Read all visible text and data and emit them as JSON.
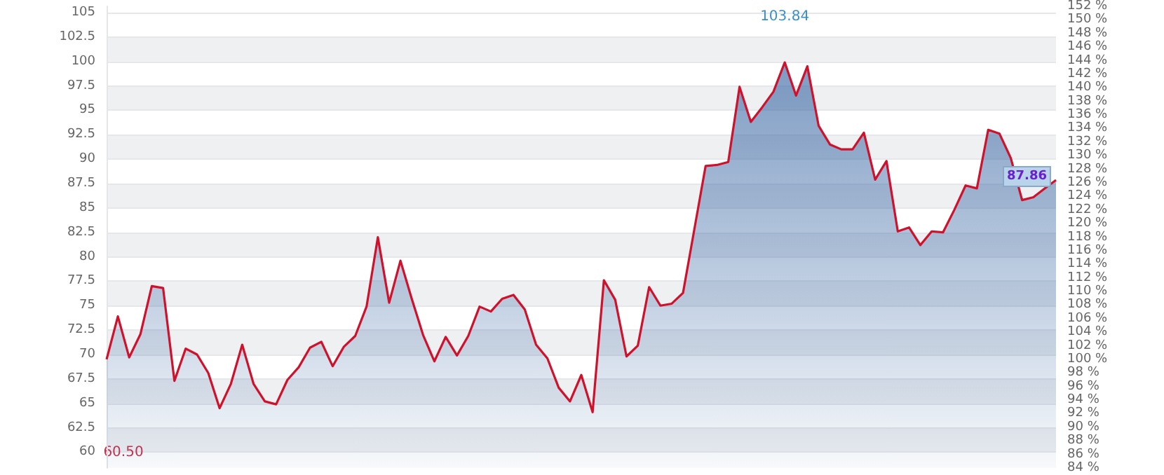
{
  "chart_data": {
    "type": "area",
    "categories": [
      null,
      null,
      null,
      null,
      null,
      null,
      null,
      null,
      null,
      null,
      null,
      null,
      null,
      null,
      null,
      null,
      null,
      null,
      null,
      null,
      null,
      null,
      null,
      null,
      null,
      null,
      null,
      null,
      null,
      null,
      null,
      null,
      null,
      null,
      null,
      null,
      null,
      null,
      null,
      null,
      null,
      null,
      null,
      null,
      null,
      null,
      null,
      null,
      null,
      null,
      null,
      null,
      null,
      null,
      null,
      null,
      null,
      null,
      null,
      null,
      null,
      null,
      null,
      null,
      null,
      null,
      null,
      null,
      null,
      null,
      null,
      null,
      null,
      null,
      null,
      null,
      null,
      null,
      null,
      null,
      null,
      null,
      null,
      null,
      null
    ],
    "series": [
      {
        "color": "#d0112b",
        "values": [
          69.5,
          73.9,
          69.7,
          72.1,
          77.0,
          76.8,
          67.3,
          70.6,
          70.0,
          68.1,
          64.5,
          67.0,
          71.0,
          67.0,
          65.2,
          64.9,
          67.4,
          68.7,
          70.7,
          71.3,
          68.8,
          70.8,
          71.9,
          74.9,
          82.0,
          75.3,
          79.6,
          75.7,
          72.0,
          69.3,
          71.8,
          69.9,
          71.9,
          74.9,
          74.4,
          75.7,
          76.1,
          74.6,
          71.0,
          69.6,
          66.6,
          65.2,
          67.9,
          64.1,
          77.6,
          75.6,
          69.8,
          70.9,
          76.9,
          75.0,
          75.2,
          76.3,
          82.8,
          89.3,
          89.4,
          89.7,
          97.4,
          93.8,
          95.3,
          96.9,
          99.9,
          96.5,
          99.5,
          93.4,
          91.5,
          91.0,
          91.0,
          92.7,
          87.9,
          89.8,
          82.6,
          83.0,
          81.2,
          82.6,
          82.5,
          84.8,
          87.3,
          87.0,
          93.0,
          92.6,
          90.1,
          85.8,
          86.1,
          87.0,
          87.86
        ],
        "value_labels": [
          null,
          null,
          null,
          null,
          null,
          null,
          null,
          null,
          null,
          null,
          null,
          null,
          null,
          null,
          null,
          null,
          null,
          null,
          null,
          null,
          null,
          null,
          null,
          null,
          null,
          null,
          null,
          null,
          null,
          null,
          null,
          null,
          null,
          null,
          null,
          null,
          null,
          null,
          null,
          null,
          null,
          null,
          null,
          null,
          null,
          null,
          null,
          null,
          null,
          null,
          null,
          null,
          null,
          null,
          null,
          null,
          null,
          null,
          null,
          null,
          null,
          null,
          null,
          null,
          null,
          null,
          null,
          null,
          null,
          null,
          null,
          null,
          null,
          null,
          null,
          null,
          null,
          null,
          null,
          null,
          null,
          null,
          null,
          null,
          "87.86"
        ]
      }
    ],
    "ylim": [
      58.38,
      105.64
    ],
    "yticks": [
      60,
      62.5,
      65,
      67.5,
      70,
      72.5,
      75,
      77.5,
      80,
      82.5,
      85,
      87.5,
      90,
      92.5,
      95,
      97.5,
      100,
      102.5,
      105
    ],
    "y2lim": [
      84,
      152
    ],
    "y2ticks": [
      {
        "value": 84,
        "label": "84 %"
      },
      {
        "value": 86,
        "label": "86 %"
      },
      {
        "value": 88,
        "label": "88 %"
      },
      {
        "value": 90,
        "label": "90 %"
      },
      {
        "value": 92,
        "label": "92 %"
      },
      {
        "value": 94,
        "label": "94 %"
      },
      {
        "value": 96,
        "label": "96 %"
      },
      {
        "value": 98,
        "label": "98 %"
      },
      {
        "value": 100,
        "label": "100 %"
      },
      {
        "value": 102,
        "label": "102 %"
      },
      {
        "value": 104,
        "label": "104 %"
      },
      {
        "value": 106,
        "label": "106 %"
      },
      {
        "value": 108,
        "label": "108 %"
      },
      {
        "value": 110,
        "label": "110 %"
      },
      {
        "value": 112,
        "label": "112 %"
      },
      {
        "value": 114,
        "label": "114 %"
      },
      {
        "value": 116,
        "label": "116 %"
      },
      {
        "value": 118,
        "label": "118 %"
      },
      {
        "value": 120,
        "label": "120 %"
      },
      {
        "value": 122,
        "label": "122 %"
      },
      {
        "value": 124,
        "label": "124 %"
      },
      {
        "value": 126,
        "label": "126 %"
      },
      {
        "value": 128,
        "label": "128 %"
      },
      {
        "value": 130,
        "label": "130 %"
      },
      {
        "value": 132,
        "label": "132 %"
      },
      {
        "value": 134,
        "label": "134 %"
      },
      {
        "value": 136,
        "label": "136 %"
      },
      {
        "value": 138,
        "label": "138 %"
      },
      {
        "value": 140,
        "label": "140 %"
      },
      {
        "value": 142,
        "label": "142 %"
      },
      {
        "value": 144,
        "label": "144 %"
      },
      {
        "value": 146,
        "label": "146 %"
      },
      {
        "value": 148,
        "label": "148 %"
      },
      {
        "value": 150,
        "label": "150 %"
      },
      {
        "value": 152,
        "label": "152 %"
      }
    ],
    "annotations": [
      "103.84",
      "60.50"
    ],
    "grid": "y",
    "marker": "none",
    "tick_labels": "y"
  }
}
